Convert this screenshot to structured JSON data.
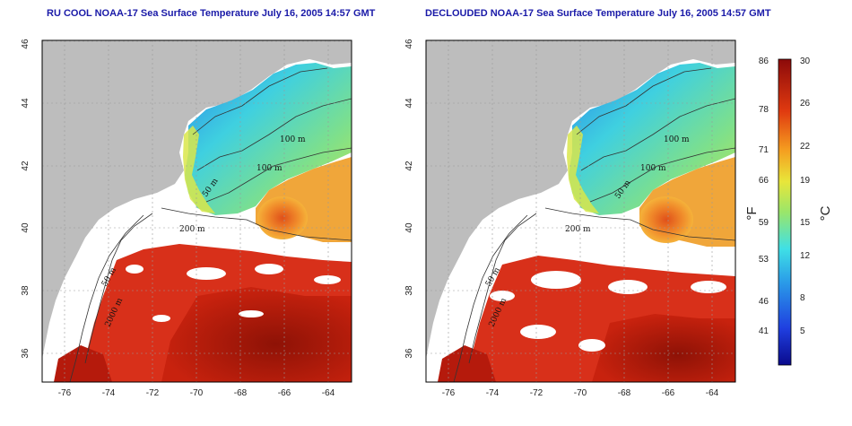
{
  "maps": [
    {
      "title": "RU COOL NOAA-17 Sea Surface Temperature July 16, 2005 14:57 GMT",
      "x_ticks": [
        "-76",
        "-74",
        "-72",
        "-70",
        "-68",
        "-66",
        "-64"
      ],
      "y_ticks": [
        "36",
        "38",
        "40",
        "42",
        "44",
        "46"
      ],
      "contour_labels": [
        "100 m",
        "100 m",
        "50 m",
        "200 m",
        "50 m",
        "2000 m"
      ]
    },
    {
      "title": "DECLOUDED NOAA-17 Sea Surface Temperature July 16, 2005 14:57 GMT",
      "x_ticks": [
        "-76",
        "-74",
        "-72",
        "-70",
        "-68",
        "-66",
        "-64"
      ],
      "y_ticks": [
        "36",
        "38",
        "40",
        "42",
        "44",
        "46"
      ],
      "contour_labels": [
        "100 m",
        "100 m",
        "50 m",
        "200 m",
        "50 m",
        "2000 m"
      ]
    }
  ],
  "colorbar": {
    "fahrenheit_label": "°F",
    "celsius_label": "°C",
    "fahrenheit_ticks": [
      "86",
      "78",
      "71",
      "66",
      "59",
      "53",
      "46",
      "41"
    ],
    "celsius_ticks": [
      "30",
      "26",
      "22",
      "19",
      "15",
      "12",
      "8",
      "5"
    ],
    "colors": [
      "#0a0a8c",
      "#1f3fe0",
      "#2a9be8",
      "#3fe0e6",
      "#9ae66a",
      "#e8e63a",
      "#f5a020",
      "#e03a10",
      "#8c0a0a"
    ]
  },
  "colors": {
    "land": "#bdbdbd",
    "cloud": "#ffffff",
    "cold_water": "#2f7fe6",
    "shelf_water": "#6fd9a8",
    "warm_water": "#d22a12",
    "title": "#1a1aa8"
  }
}
